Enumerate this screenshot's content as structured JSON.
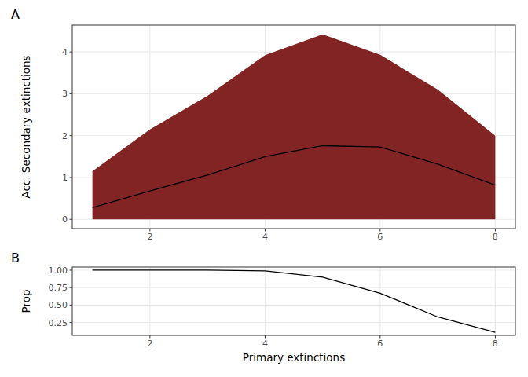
{
  "chart_data": [
    {
      "type": "area",
      "tag": "A",
      "ylabel": "Acc. Secondary extinctions",
      "x": [
        1,
        2,
        3,
        4,
        5,
        6,
        7,
        8
      ],
      "series": [
        {
          "type": "area",
          "color": "#832424",
          "lower": [
            0,
            0,
            0,
            0,
            0,
            0,
            0,
            0
          ],
          "upper": [
            1.15,
            2.15,
            2.95,
            3.92,
            4.42,
            3.93,
            3.1,
            2.0
          ]
        },
        {
          "type": "line",
          "color": "#000000",
          "values": [
            0.28,
            0.68,
            1.06,
            1.5,
            1.76,
            1.73,
            1.32,
            0.82
          ]
        }
      ],
      "xlim": [
        0.65,
        8.35
      ],
      "xticks": [
        2,
        4,
        6,
        8
      ],
      "ylim": [
        -0.22,
        4.64
      ],
      "yticks": [
        0,
        1,
        2,
        3,
        4
      ],
      "grid": true
    },
    {
      "type": "line",
      "tag": "B",
      "ylabel": "Prop",
      "xlabel": "Primary extinctions",
      "x": [
        1,
        2,
        3,
        4,
        5,
        6,
        7,
        8
      ],
      "series": [
        {
          "type": "line",
          "color": "#000000",
          "values": [
            1,
            1,
            1,
            0.99,
            0.9,
            0.67,
            0.33,
            0.11
          ]
        }
      ],
      "xlim": [
        0.65,
        8.35
      ],
      "xticks": [
        2,
        4,
        6,
        8
      ],
      "ylim": [
        0.0655,
        1.0445
      ],
      "yticks": [
        0.25,
        {
          "value": 0.5,
          "label": "0.50"
        },
        0.75,
        {
          "value": 1,
          "label": "1.00"
        }
      ],
      "grid": true
    }
  ]
}
